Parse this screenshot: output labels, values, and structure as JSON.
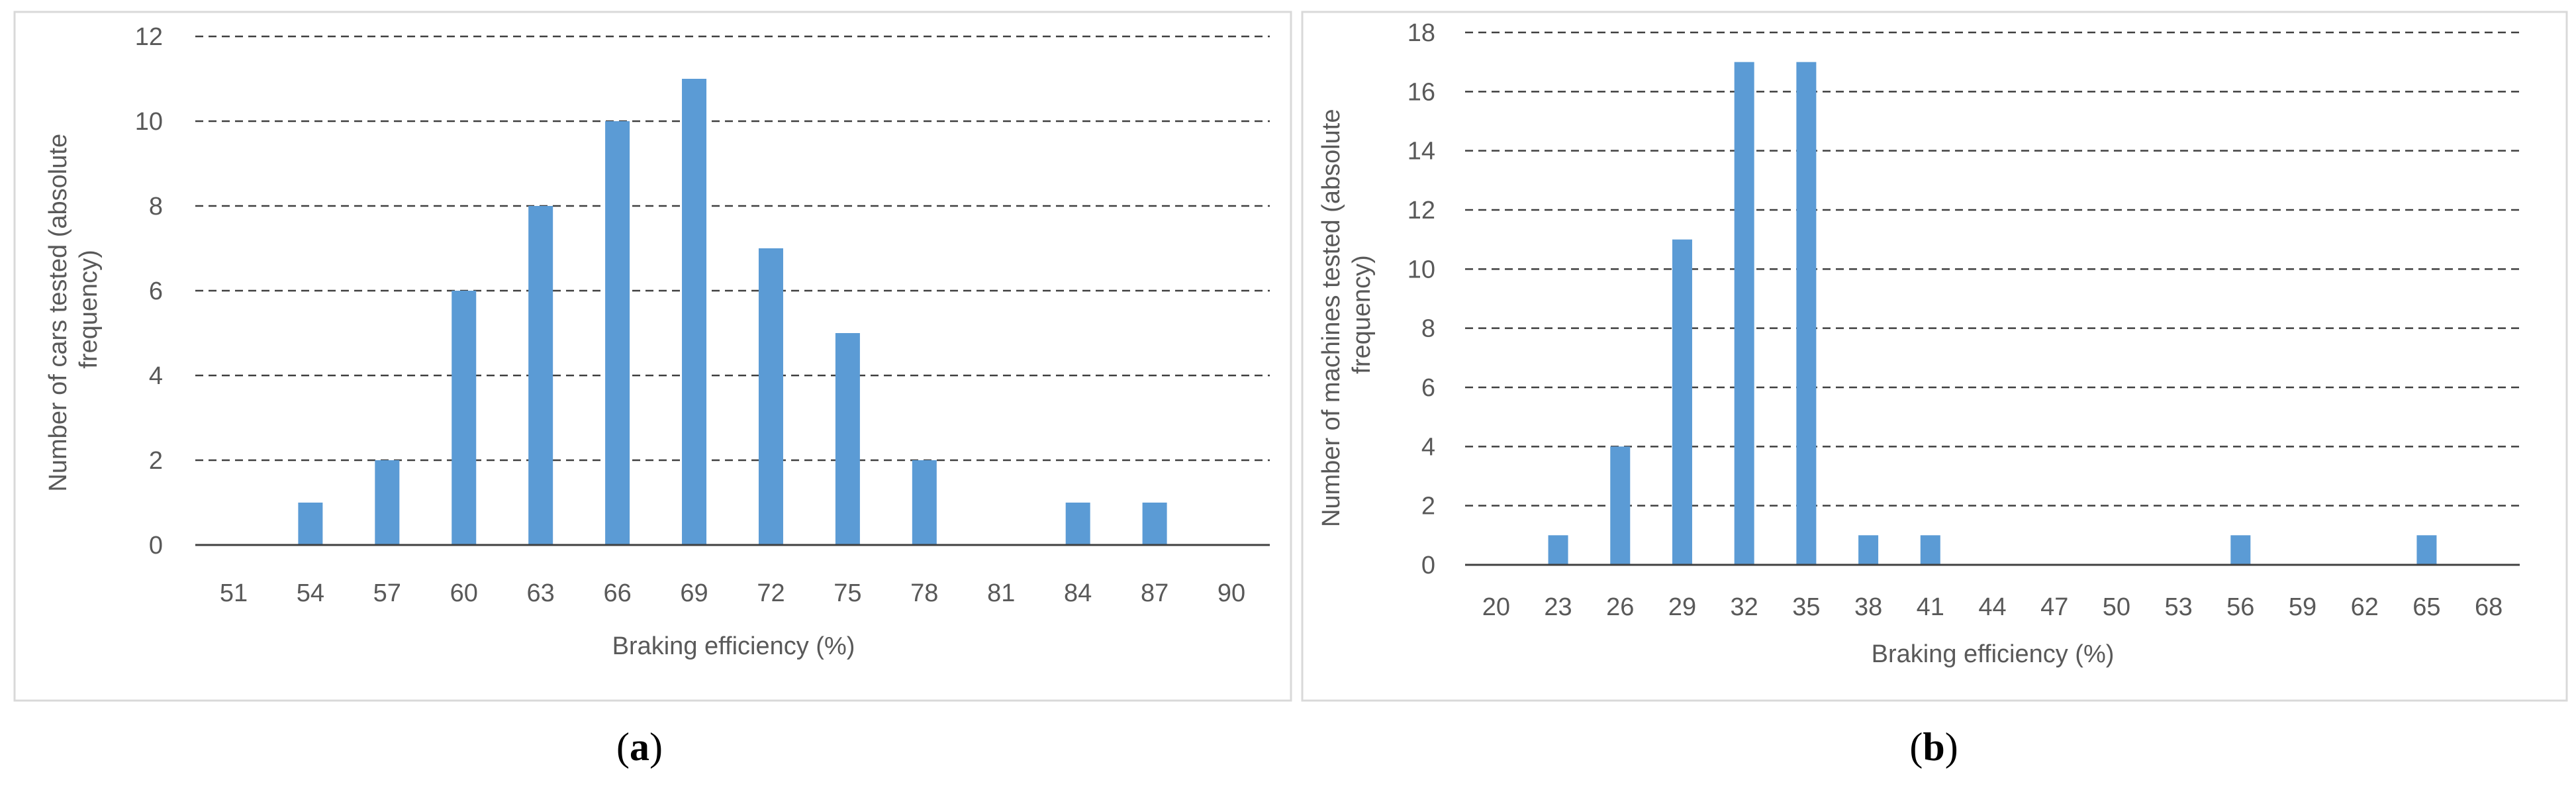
{
  "colors": {
    "bar": "#5b9bd5",
    "grid": "#404040",
    "text": "#595959"
  },
  "chart_data": [
    {
      "type": "bar",
      "panel_label": "a",
      "caption_open": "(",
      "caption_close": ")",
      "xlabel": "Braking efficiency (%)",
      "ylabel_lines": [
        "Number  of cars tested (absolute",
        "frequency)"
      ],
      "ylim": [
        0,
        12
      ],
      "ytick_step": 2,
      "yticks": [
        "0",
        "2",
        "4",
        "6",
        "8",
        "10",
        "12"
      ],
      "grid": "horizontal dashed",
      "legend": "none",
      "categories": [
        "51",
        "54",
        "57",
        "60",
        "63",
        "66",
        "69",
        "72",
        "75",
        "78",
        "81",
        "84",
        "87",
        "90"
      ],
      "values": [
        0,
        1,
        2,
        6,
        8,
        10,
        11,
        7,
        5,
        2,
        0,
        1,
        1,
        0
      ]
    },
    {
      "type": "bar",
      "panel_label": "b",
      "caption_open": "(",
      "caption_close": ")",
      "xlabel": "Braking efficiency (%)",
      "ylabel_lines": [
        "Number of machines tested (absolute",
        "frequency)"
      ],
      "ylim": [
        0,
        18
      ],
      "ytick_step": 2,
      "yticks": [
        "0",
        "2",
        "4",
        "6",
        "8",
        "10",
        "12",
        "14",
        "16",
        "18"
      ],
      "grid": "horizontal dashed",
      "legend": "none",
      "categories": [
        "20",
        "23",
        "26",
        "29",
        "32",
        "35",
        "38",
        "41",
        "44",
        "47",
        "50",
        "53",
        "56",
        "59",
        "62",
        "65",
        "68"
      ],
      "values": [
        0,
        1,
        4,
        11,
        17,
        17,
        1,
        1,
        0,
        0,
        0,
        0,
        1,
        0,
        0,
        1,
        0
      ]
    }
  ]
}
